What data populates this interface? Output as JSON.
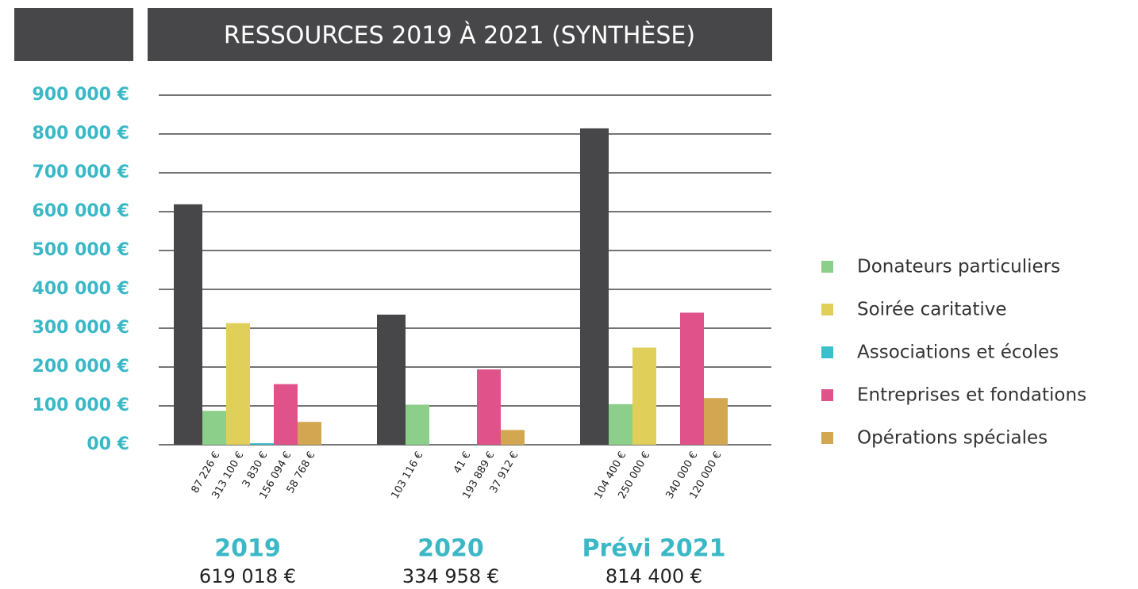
{
  "chart_data": {
    "type": "bar",
    "title": "RESSOURCES 2019 À 2021  (SYNTHÈSE)",
    "categories": [
      "2019",
      "2020",
      "Prévi 2021"
    ],
    "totals": [
      619018,
      334958,
      814400
    ],
    "total_labels": [
      "619 018 €",
      "334 958 €",
      "814 400 €"
    ],
    "total_color": "#474749",
    "series": [
      {
        "name": "Donateurs particuliers",
        "color": "#8ccf8b",
        "values": [
          87226,
          103116,
          104400
        ],
        "value_labels": [
          "87 226 €",
          "103 116 €",
          "104 400 €"
        ]
      },
      {
        "name": "Soirée caritative",
        "color": "#e0d05a",
        "values": [
          313100,
          null,
          250000
        ],
        "value_labels": [
          "313 100 €",
          null,
          "250 000 €"
        ]
      },
      {
        "name": "Associations et écoles",
        "color": "#3bbfcc",
        "values": [
          3830,
          41,
          null
        ],
        "value_labels": [
          "3 830 €",
          "41 €",
          null
        ]
      },
      {
        "name": "Entreprises et fondations",
        "color": "#e0538a",
        "values": [
          156094,
          193889,
          340000
        ],
        "value_labels": [
          "156 094 €",
          "193 889  €",
          "340 000 €"
        ]
      },
      {
        "name": "Opérations spéciales",
        "color": "#d3a752",
        "values": [
          58768,
          37912,
          120000
        ],
        "value_labels": [
          "58 768 €",
          "37 912 €",
          "120 000 €"
        ]
      }
    ],
    "ylim": [
      0,
      900000
    ],
    "yticks": [
      {
        "value": 0,
        "label": "00 €"
      },
      {
        "value": 100000,
        "label": "100 000 €"
      },
      {
        "value": 200000,
        "label": "200 000 €"
      },
      {
        "value": 300000,
        "label": "300 000 €"
      },
      {
        "value": 400000,
        "label": "400 000 €"
      },
      {
        "value": 500000,
        "label": "500 000 €"
      },
      {
        "value": 600000,
        "label": "600 000 €"
      },
      {
        "value": 700000,
        "label": "700 000 €"
      },
      {
        "value": 800000,
        "label": "800 000 €"
      },
      {
        "value": 900000,
        "label": "900 000 €"
      }
    ],
    "grid": true,
    "legend": "right"
  }
}
